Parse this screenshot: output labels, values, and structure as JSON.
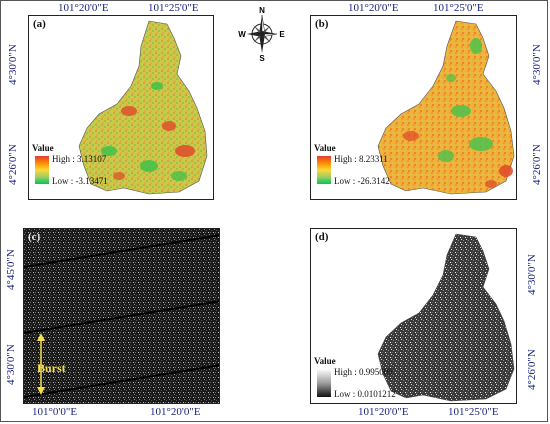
{
  "panels": {
    "a": {
      "label": "(a)",
      "legend": {
        "title": "Value",
        "high": "High : 3.13107",
        "low": "Low : -3.13471"
      },
      "x_ticks": [
        "101°20'0\"E",
        "101°25'0\"E"
      ],
      "y_ticks": [
        "4°30'0\"N",
        "4°26'0\"N"
      ]
    },
    "b": {
      "label": "(b)",
      "legend": {
        "title": "Value",
        "high": "High : 8.23311",
        "low": "Low : -26.3142"
      },
      "x_ticks": [
        "101°20'0\"E",
        "101°25'0\"E"
      ],
      "y_ticks": [
        "4°30'0\"N",
        "4°26'0\"N"
      ]
    },
    "c": {
      "label": "(c)",
      "annotation": "Burst",
      "x_ticks": [
        "101°0'0\"E",
        "101°20'0\"E"
      ],
      "y_ticks": [
        "4°45'0\"N",
        "4°30'0\"N"
      ]
    },
    "d": {
      "label": "(d)",
      "legend": {
        "title": "Value",
        "high": "High : 0.995009",
        "low": "Low : 0.0101212"
      },
      "x_ticks": [
        "101°20'0\"E",
        "101°25'0\"E"
      ],
      "y_ticks": [
        "4°30'0\"N",
        "4°26'0\"N"
      ]
    }
  },
  "compass": {
    "n": "N",
    "s": "S",
    "e": "E",
    "w": "W"
  },
  "colors": {
    "high": "#e53935",
    "mid": "#fdd835",
    "low": "#00c853",
    "coord_text": "#1a237e",
    "burst": "#f7e04b"
  }
}
